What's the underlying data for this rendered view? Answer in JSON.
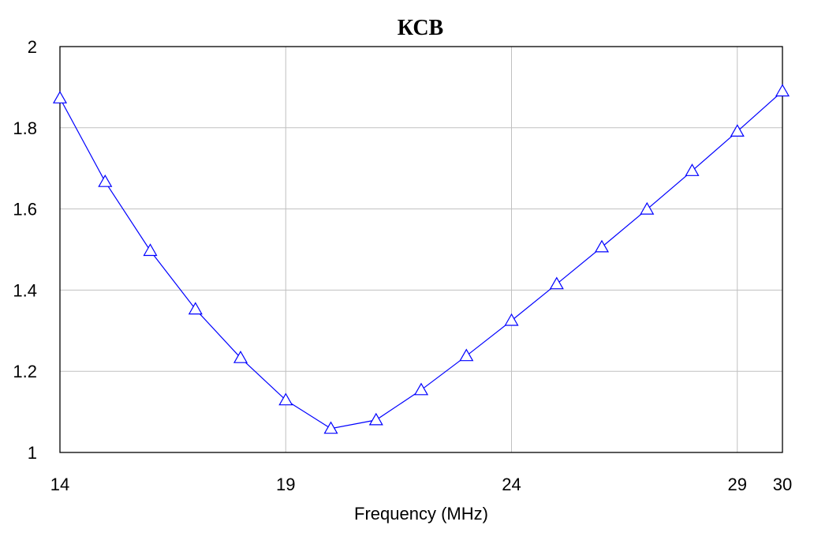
{
  "chart_data": {
    "type": "line",
    "title": "КСВ",
    "xlabel": "Frequency (MHz)",
    "ylabel": "",
    "xlim": [
      14,
      30
    ],
    "ylim": [
      1,
      2
    ],
    "xticks": [
      14,
      19,
      24,
      29,
      30
    ],
    "yticks": [
      1,
      1.2,
      1.4,
      1.6,
      1.8,
      2
    ],
    "xtick_labels": [
      "14",
      "19",
      "24",
      "29",
      "30"
    ],
    "ytick_labels": [
      "1",
      "1.2",
      "1.4",
      "1.6",
      "1.8",
      "2"
    ],
    "grid": true,
    "legend": "none",
    "series": [
      {
        "color": "#0000ff",
        "marker": "triangle",
        "x": [
          14,
          15,
          16,
          17,
          18,
          19,
          20,
          21,
          22,
          23,
          24,
          25,
          26,
          27,
          28,
          29,
          30
        ],
        "y": [
          1.873,
          1.667,
          1.497,
          1.353,
          1.233,
          1.129,
          1.059,
          1.08,
          1.154,
          1.238,
          1.325,
          1.415,
          1.506,
          1.599,
          1.694,
          1.791,
          1.89
        ]
      }
    ],
    "colors": {
      "axis": "#000000",
      "grid": "#c0c0c0",
      "series": "#0000ff"
    }
  }
}
